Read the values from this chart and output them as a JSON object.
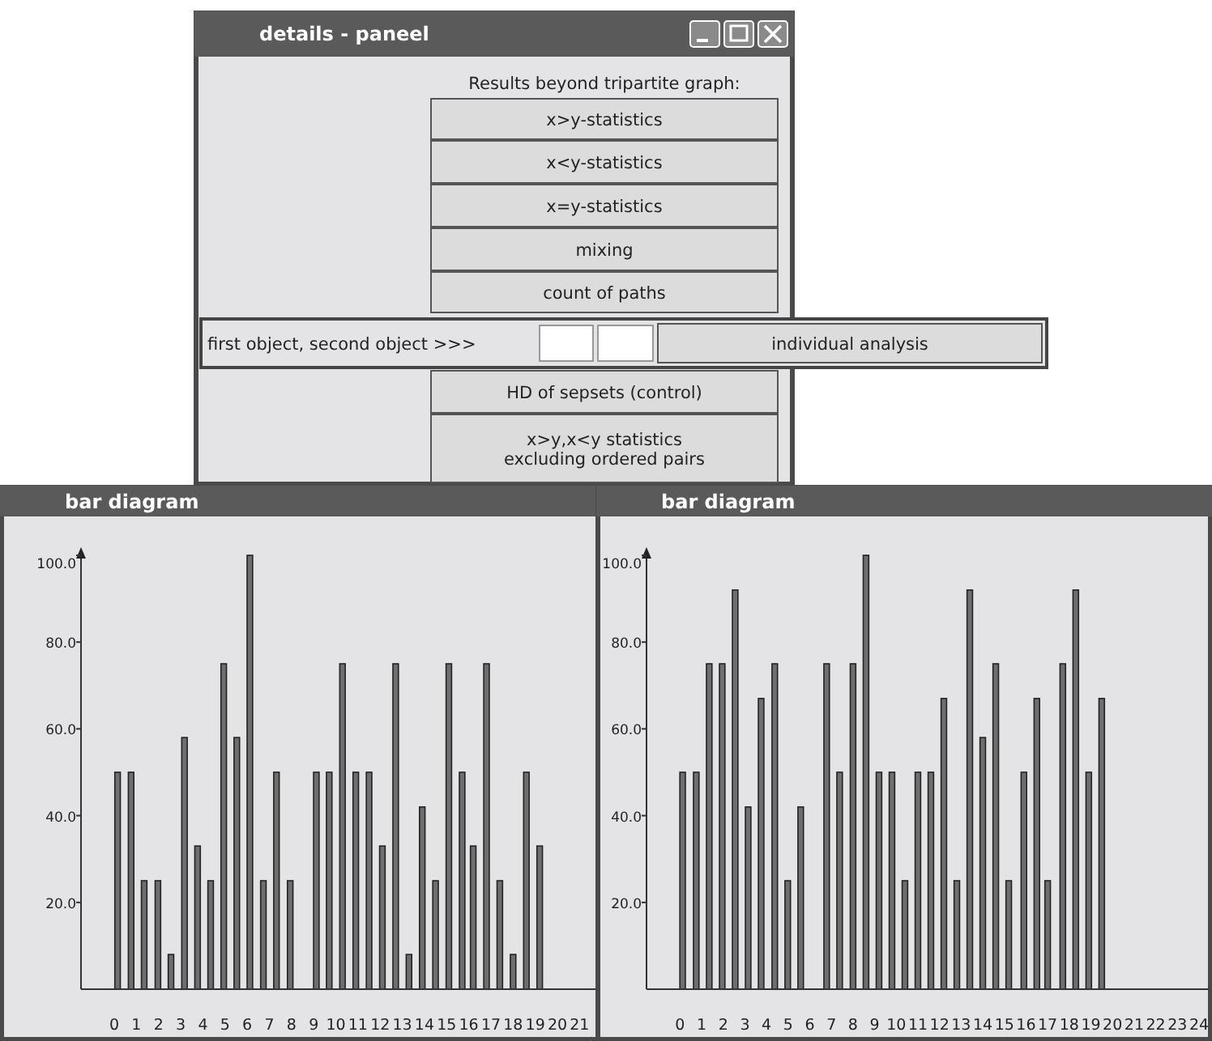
{
  "chart_data": [
    {
      "type": "other",
      "title": "details - paneel",
      "annotations": [
        "Results beyond tripartite graph:",
        "x>y-statistics",
        "x<y-statistics",
        "x=y-statistics",
        "mixing",
        "count of paths",
        "first object, second object >>>",
        "individual analysis",
        "HD of sepsets (control)",
        "x>y,x<y statistics\nexcluding ordered pairs"
      ]
    },
    {
      "type": "bar",
      "title": "bar diagram",
      "color": "#6e6e6e",
      "x": [
        0.15,
        0.76,
        1.35,
        1.97,
        2.56,
        3.17,
        3.76,
        4.35,
        4.94,
        5.53,
        6.12,
        6.73,
        7.32,
        7.94,
        8.5,
        9.12,
        9.7,
        10.3,
        10.9,
        11.5,
        12.1,
        12.7,
        13.3,
        13.9,
        14.5,
        15.1,
        15.7,
        16.2,
        16.8,
        17.4,
        18.0,
        18.6,
        19.2
      ],
      "values": [
        50,
        50,
        25,
        25,
        8,
        58,
        33,
        25,
        75,
        58,
        100,
        25,
        50,
        25,
        0,
        50,
        50,
        75,
        50,
        50,
        33,
        75,
        8,
        42,
        25,
        75,
        50,
        33,
        75,
        25,
        8,
        50,
        33
      ],
      "xlim": [
        -1.5,
        21.9
      ],
      "xticks": [
        0,
        1,
        2,
        3,
        4,
        5,
        6,
        7,
        8,
        9,
        10,
        11,
        12,
        13,
        14,
        15,
        16,
        17,
        18,
        19,
        20,
        21
      ],
      "ylim": [
        0,
        100
      ],
      "yticks": [
        {
          "value": 20,
          "label": "20.0"
        },
        {
          "value": 40,
          "label": "40.0"
        },
        {
          "value": 60,
          "label": "60.0"
        },
        {
          "value": 80,
          "label": "80.0"
        },
        {
          "value": 100,
          "label": "100.0"
        }
      ]
    },
    {
      "type": "bar",
      "title": "bar diagram",
      "color": "#6e6e6e",
      "x": [
        0.12,
        0.75,
        1.35,
        1.95,
        2.55,
        3.15,
        3.75,
        4.38,
        4.98,
        5.58,
        6.18,
        6.78,
        7.38,
        8.0,
        8.6,
        9.2,
        9.8,
        10.4,
        11.0,
        11.6,
        12.2,
        12.8,
        13.4,
        14.0,
        14.6,
        15.2,
        15.9,
        16.5,
        17.0,
        17.7,
        18.3,
        18.9,
        19.5
      ],
      "values": [
        50,
        50,
        75,
        75,
        92,
        42,
        67,
        75,
        25,
        42,
        0,
        75,
        50,
        75,
        100,
        50,
        50,
        25,
        50,
        50,
        67,
        25,
        92,
        58,
        75,
        25,
        50,
        67,
        25,
        75,
        92,
        50,
        67
      ],
      "xlim": [
        -1.55,
        24.6
      ],
      "xticks": [
        0,
        1,
        2,
        3,
        4,
        5,
        6,
        7,
        8,
        9,
        10,
        11,
        12,
        13,
        14,
        15,
        16,
        17,
        18,
        19,
        20,
        21,
        22,
        23,
        24
      ],
      "ylim": [
        0,
        100
      ],
      "yticks": [
        {
          "value": 20,
          "label": "20.0"
        },
        {
          "value": 40,
          "label": "40.0"
        },
        {
          "value": 60,
          "label": "60.0"
        },
        {
          "value": 80,
          "label": "80.0"
        },
        {
          "value": 100,
          "label": "100.0"
        }
      ]
    }
  ]
}
